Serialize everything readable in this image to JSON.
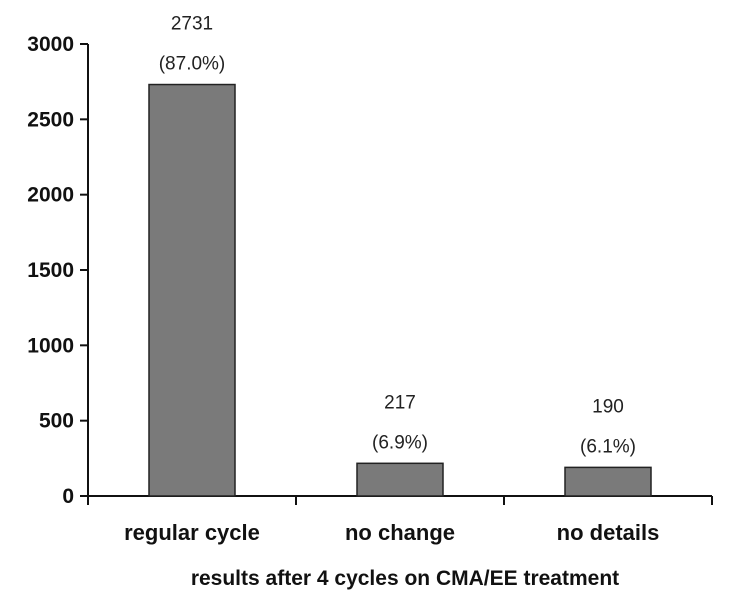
{
  "chart_data": {
    "type": "bar",
    "categories": [
      "regular cycle",
      "no change",
      "no details"
    ],
    "values": [
      2731,
      217,
      190
    ],
    "value_labels": [
      "2731",
      "217",
      "190"
    ],
    "percent_labels": [
      "(87.0%)",
      "(6.9%)",
      "(6.1%)"
    ],
    "title": "",
    "xlabel": "results after 4 cycles on CMA/EE treatment",
    "ylabel": "",
    "ylim": [
      0,
      3000
    ],
    "yticks": [
      0,
      500,
      1000,
      1500,
      2000,
      2500,
      3000
    ],
    "grid": false,
    "legend": "none",
    "bar_color": "#7a7a7a"
  }
}
